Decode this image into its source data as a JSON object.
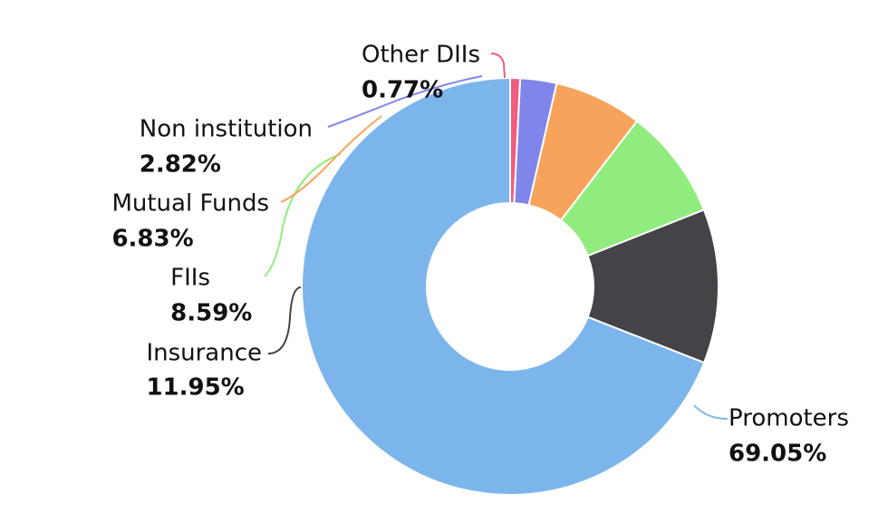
{
  "chart_data": {
    "type": "pie",
    "donut": true,
    "categories": [
      "Promoters",
      "Insurance",
      "FIIs",
      "Mutual Funds",
      "Non institution",
      "Other DIIs"
    ],
    "values": [
      69.05,
      11.95,
      8.59,
      6.83,
      2.82,
      0.77
    ],
    "value_labels": [
      "69.05%",
      "11.95%",
      "8.59%",
      "6.83%",
      "2.82%",
      "0.77%"
    ],
    "colors": [
      "#7CB5EC",
      "#434348",
      "#90ED7D",
      "#F7A35C",
      "#8085E9",
      "#F15C80"
    ],
    "legend": "none",
    "labels": "outside with connector lines"
  }
}
